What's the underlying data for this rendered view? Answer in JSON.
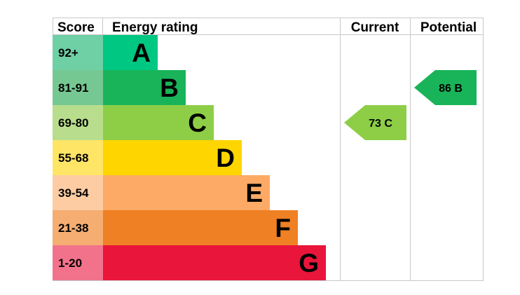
{
  "chart_data": {
    "type": "bar",
    "headers": {
      "score": "Score",
      "rating": "Energy rating",
      "current": "Current",
      "potential": "Potential"
    },
    "bands": [
      {
        "score": "92+",
        "letter": "A",
        "color": "#00c781",
        "score_bg": "#6fcfa5"
      },
      {
        "score": "81-91",
        "letter": "B",
        "color": "#19b459",
        "score_bg": "#76c892"
      },
      {
        "score": "69-80",
        "letter": "C",
        "color": "#8dce46",
        "score_bg": "#b8de8d"
      },
      {
        "score": "55-68",
        "letter": "D",
        "color": "#ffd500",
        "score_bg": "#ffe566"
      },
      {
        "score": "39-54",
        "letter": "E",
        "color": "#fcaa65",
        "score_bg": "#fdcca3"
      },
      {
        "score": "21-38",
        "letter": "F",
        "color": "#ef8023",
        "score_bg": "#f5ad72"
      },
      {
        "score": "1-20",
        "letter": "G",
        "color": "#e9153b",
        "score_bg": "#f2728c"
      }
    ],
    "current": {
      "value": 73,
      "letter": "C",
      "label": "73  C",
      "color": "#8dce46"
    },
    "potential": {
      "value": 86,
      "letter": "B",
      "label": "86  B",
      "color": "#19b459"
    }
  }
}
